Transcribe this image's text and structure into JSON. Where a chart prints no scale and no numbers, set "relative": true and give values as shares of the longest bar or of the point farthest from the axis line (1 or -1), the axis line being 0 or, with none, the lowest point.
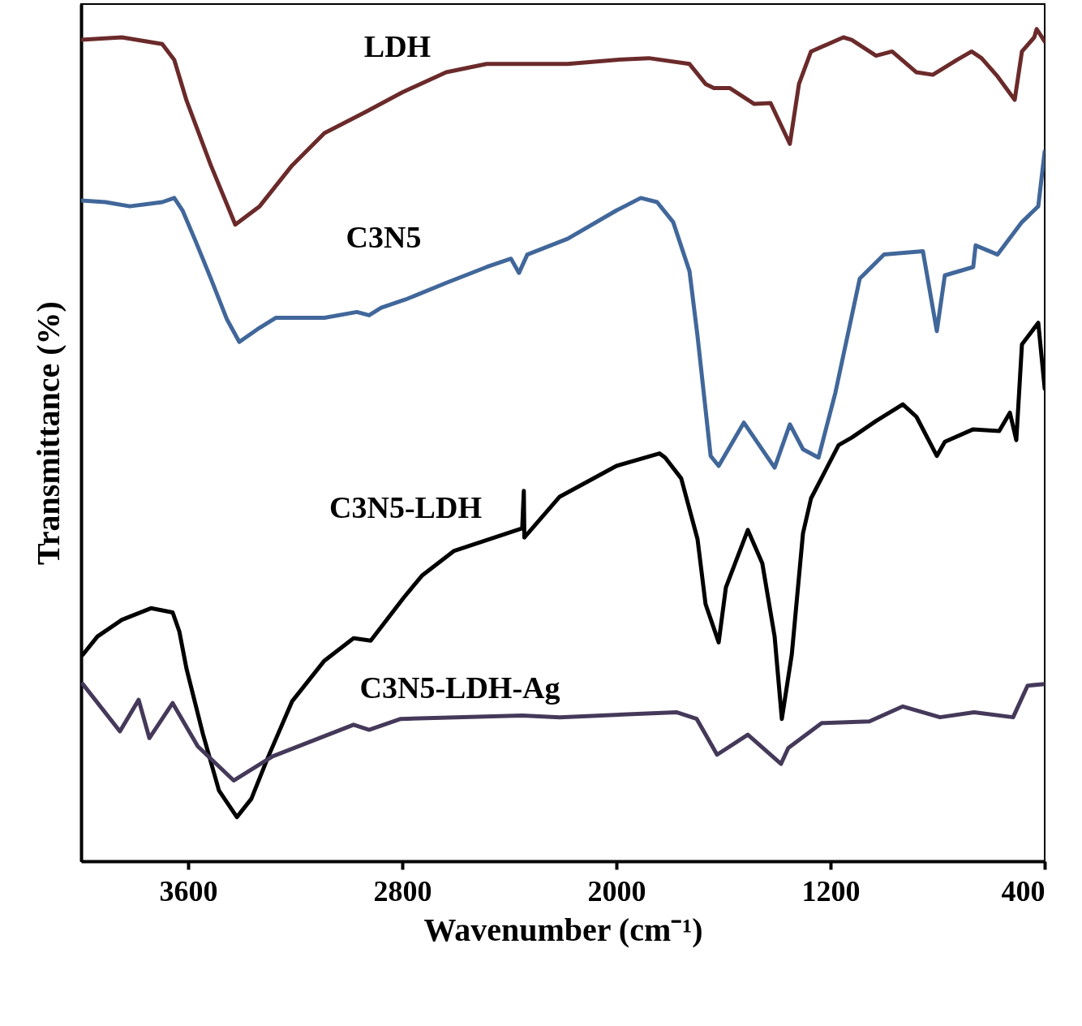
{
  "chart_data": {
    "type": "line",
    "relative": true,
    "xlabel": "Wavenumber (cm⁻¹)",
    "ylabel": "Transmittance (%)",
    "xlim": [
      4000,
      400
    ],
    "xticks": [
      3600,
      2800,
      2000,
      1200,
      400
    ],
    "grid": false,
    "legend": false,
    "series": [
      {
        "name": "LDH",
        "color": "#6b2a2a",
        "x": [
          4000,
          3848,
          3697,
          3652,
          3606,
          3515,
          3424,
          3333,
          3212,
          3091,
          2939,
          2800,
          2636,
          2485,
          2333,
          2182,
          2000,
          1879,
          1727,
          1667,
          1636,
          1576,
          1485,
          1424,
          1352,
          1318,
          1273,
          1152,
          1121,
          1030,
          970,
          879,
          818,
          727,
          673,
          636,
          576,
          512,
          485,
          439,
          430,
          400
        ],
        "values": [
          0.987,
          0.99,
          0.982,
          0.963,
          0.914,
          0.836,
          0.765,
          0.787,
          0.836,
          0.875,
          0.9,
          0.924,
          0.948,
          0.958,
          0.958,
          0.958,
          0.963,
          0.965,
          0.958,
          0.934,
          0.929,
          0.929,
          0.91,
          0.911,
          0.862,
          0.934,
          0.973,
          0.99,
          0.987,
          0.968,
          0.973,
          0.948,
          0.945,
          0.963,
          0.973,
          0.965,
          0.943,
          0.915,
          0.973,
          0.99,
          1,
          0.985
        ]
      },
      {
        "name": "C3N5",
        "color": "#41679a",
        "x": [
          4000,
          3909,
          3818,
          3697,
          3652,
          3621,
          3576,
          3515,
          3455,
          3409,
          3333,
          3273,
          3091,
          2970,
          2924,
          2879,
          2788,
          2636,
          2485,
          2394,
          2364,
          2333,
          2182,
          2000,
          1909,
          1848,
          1788,
          1727,
          1697,
          1648,
          1618,
          1524,
          1409,
          1352,
          1303,
          1245,
          1182,
          1091,
          1000,
          855,
          803,
          773,
          667,
          658,
          576,
          485,
          424,
          400
        ],
        "values": [
          0.794,
          0.792,
          0.787,
          0.792,
          0.797,
          0.782,
          0.748,
          0.7,
          0.651,
          0.624,
          0.641,
          0.653,
          0.653,
          0.66,
          0.656,
          0.665,
          0.675,
          0.695,
          0.714,
          0.724,
          0.707,
          0.729,
          0.748,
          0.782,
          0.797,
          0.792,
          0.768,
          0.709,
          0.631,
          0.487,
          0.475,
          0.527,
          0.473,
          0.525,
          0.495,
          0.485,
          0.563,
          0.7,
          0.729,
          0.733,
          0.637,
          0.704,
          0.714,
          0.74,
          0.729,
          0.768,
          0.787,
          0.853
        ]
      },
      {
        "name": "C3N5-LDH",
        "color": "#000000",
        "x": [
          3994,
          3939,
          3848,
          3739,
          3658,
          3633,
          3606,
          3545,
          3485,
          3418,
          3364,
          3303,
          3212,
          3091,
          2982,
          2918,
          2794,
          2727,
          2606,
          2352,
          2346,
          2344,
          2212,
          2000,
          1839,
          1818,
          1758,
          1697,
          1667,
          1618,
          1591,
          1509,
          1455,
          1409,
          1382,
          1345,
          1303,
          1273,
          1170,
          1121,
          1030,
          930,
          879,
          803,
          773,
          667,
          570,
          530,
          506,
          485,
          424,
          400
        ],
        "values": [
          0.248,
          0.27,
          0.29,
          0.304,
          0.299,
          0.276,
          0.231,
          0.153,
          0.085,
          0.053,
          0.075,
          0.124,
          0.192,
          0.241,
          0.268,
          0.265,
          0.317,
          0.343,
          0.373,
          0.4,
          0.445,
          0.389,
          0.438,
          0.475,
          0.49,
          0.485,
          0.46,
          0.387,
          0.309,
          0.263,
          0.329,
          0.398,
          0.358,
          0.27,
          0.171,
          0.248,
          0.394,
          0.436,
          0.5,
          0.509,
          0.529,
          0.549,
          0.534,
          0.487,
          0.504,
          0.519,
          0.517,
          0.539,
          0.506,
          0.621,
          0.647,
          0.568
        ]
      },
      {
        "name": "C3N5-LDH-Ag",
        "color": "#45395a",
        "x": [
          3994,
          3855,
          3785,
          3745,
          3658,
          3564,
          3430,
          3285,
          2982,
          2924,
          2806,
          2352,
          2212,
          1776,
          1700,
          1624,
          1509,
          1385,
          1358,
          1233,
          1055,
          930,
          791,
          664,
          518,
          464,
          400
        ],
        "values": [
          0.213,
          0.156,
          0.194,
          0.148,
          0.19,
          0.138,
          0.097,
          0.126,
          0.164,
          0.158,
          0.171,
          0.175,
          0.173,
          0.179,
          0.171,
          0.128,
          0.152,
          0.117,
          0.136,
          0.166,
          0.168,
          0.186,
          0.173,
          0.179,
          0.173,
          0.211,
          0.213
        ]
      }
    ]
  }
}
